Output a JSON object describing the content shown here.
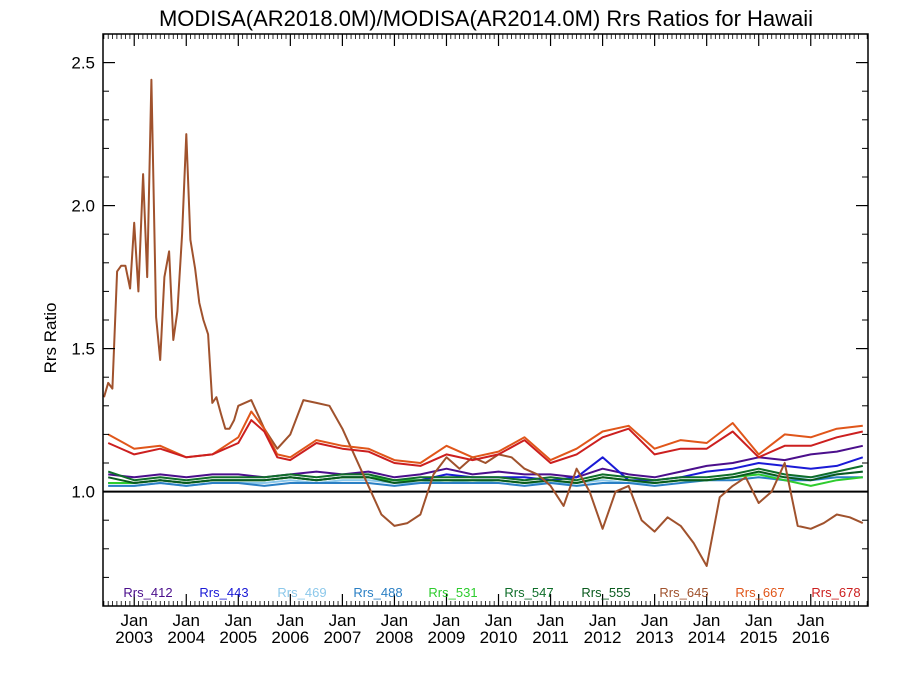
{
  "chart_data": {
    "type": "line",
    "title": "MODISA(AR2018.0M)/MODISA(AR2014.0M)  Rrs Ratios for Hawaii",
    "ylabel": "Rrs Ratio",
    "xlabel": "",
    "ylim": [
      0.6,
      2.6
    ],
    "xlim": [
      2002.4,
      2017.1
    ],
    "y_ticks": [
      1.0,
      1.5,
      2.0,
      2.5
    ],
    "y_tick_labels": [
      "1.0",
      "1.5",
      "2.0",
      "2.5"
    ],
    "x_ticks": [
      {
        "month": "Jan",
        "year": "2003",
        "x": 2003.0
      },
      {
        "month": "Jan",
        "year": "2004",
        "x": 2004.0
      },
      {
        "month": "Jan",
        "year": "2005",
        "x": 2005.0
      },
      {
        "month": "Jan",
        "year": "2006",
        "x": 2006.0
      },
      {
        "month": "Jan",
        "year": "2007",
        "x": 2007.0
      },
      {
        "month": "Jan",
        "year": "2008",
        "x": 2008.0
      },
      {
        "month": "Jan",
        "year": "2009",
        "x": 2009.0
      },
      {
        "month": "Jan",
        "year": "2010",
        "x": 2010.0
      },
      {
        "month": "Jan",
        "year": "2011",
        "x": 2011.0
      },
      {
        "month": "Jan",
        "year": "2012",
        "x": 2012.0
      },
      {
        "month": "Jan",
        "year": "2013",
        "x": 2013.0
      },
      {
        "month": "Jan",
        "year": "2014",
        "x": 2014.0
      },
      {
        "month": "Jan",
        "year": "2015",
        "x": 2015.0
      },
      {
        "month": "Jan",
        "year": "2016",
        "x": 2016.0
      }
    ],
    "reference_line": 1.0,
    "legend_position": "bottom inside plot",
    "grid": false,
    "series": [
      {
        "name": "Rrs_412",
        "color": "#4b0f8c",
        "x": [
          2002.5,
          2003.0,
          2003.5,
          2004.0,
          2004.5,
          2005.0,
          2005.5,
          2006.0,
          2006.5,
          2007.0,
          2007.5,
          2008.0,
          2008.5,
          2009.0,
          2009.5,
          2010.0,
          2010.5,
          2011.0,
          2011.5,
          2012.0,
          2012.5,
          2013.0,
          2013.5,
          2014.0,
          2014.5,
          2015.0,
          2015.5,
          2016.0,
          2016.5,
          2017.0
        ],
        "y": [
          1.06,
          1.05,
          1.06,
          1.05,
          1.06,
          1.06,
          1.05,
          1.06,
          1.07,
          1.06,
          1.07,
          1.05,
          1.06,
          1.08,
          1.06,
          1.07,
          1.06,
          1.06,
          1.05,
          1.08,
          1.06,
          1.05,
          1.07,
          1.09,
          1.1,
          1.12,
          1.11,
          1.13,
          1.14,
          1.16
        ]
      },
      {
        "name": "Rrs_443",
        "color": "#1a1ad6",
        "x": [
          2002.5,
          2003.0,
          2003.5,
          2004.0,
          2004.5,
          2005.0,
          2005.5,
          2006.0,
          2006.5,
          2007.0,
          2007.5,
          2008.0,
          2008.5,
          2009.0,
          2009.5,
          2010.0,
          2010.5,
          2011.0,
          2011.5,
          2012.0,
          2012.5,
          2013.0,
          2013.5,
          2014.0,
          2014.5,
          2015.0,
          2015.5,
          2016.0,
          2016.5,
          2017.0
        ],
        "y": [
          1.03,
          1.03,
          1.04,
          1.03,
          1.04,
          1.04,
          1.04,
          1.05,
          1.04,
          1.05,
          1.05,
          1.04,
          1.04,
          1.06,
          1.05,
          1.05,
          1.05,
          1.04,
          1.05,
          1.12,
          1.04,
          1.04,
          1.05,
          1.07,
          1.08,
          1.1,
          1.09,
          1.08,
          1.09,
          1.12
        ]
      },
      {
        "name": "Rrs_469",
        "color": "#8cc8ea",
        "x": [
          2002.5,
          2003.0,
          2003.5,
          2004.0,
          2004.5,
          2005.0,
          2005.5,
          2006.0,
          2006.5,
          2007.0,
          2007.5,
          2008.0,
          2008.5,
          2009.0,
          2009.5,
          2010.0,
          2010.5,
          2011.0,
          2011.5,
          2012.0,
          2012.5,
          2013.0,
          2013.5,
          2014.0,
          2014.5,
          2015.0,
          2015.5,
          2016.0,
          2016.5,
          2017.0
        ],
        "y": [
          1.02,
          1.02,
          1.03,
          1.02,
          1.03,
          1.03,
          1.03,
          1.04,
          1.03,
          1.04,
          1.04,
          1.03,
          1.03,
          1.04,
          1.03,
          1.04,
          1.03,
          1.03,
          1.03,
          1.04,
          1.03,
          1.03,
          1.04,
          1.04,
          1.05,
          1.06,
          1.05,
          1.05,
          1.06,
          1.07
        ]
      },
      {
        "name": "Rrs_488",
        "color": "#2a7fc4",
        "x": [
          2002.5,
          2003.0,
          2003.5,
          2004.0,
          2004.5,
          2005.0,
          2005.5,
          2006.0,
          2006.5,
          2007.0,
          2007.5,
          2008.0,
          2008.5,
          2009.0,
          2009.5,
          2010.0,
          2010.5,
          2011.0,
          2011.5,
          2012.0,
          2012.5,
          2013.0,
          2013.5,
          2014.0,
          2014.5,
          2015.0,
          2015.5,
          2016.0,
          2016.5,
          2017.0
        ],
        "y": [
          1.02,
          1.02,
          1.03,
          1.02,
          1.03,
          1.03,
          1.02,
          1.03,
          1.03,
          1.03,
          1.03,
          1.02,
          1.03,
          1.03,
          1.03,
          1.03,
          1.02,
          1.03,
          1.02,
          1.03,
          1.03,
          1.02,
          1.03,
          1.04,
          1.04,
          1.05,
          1.04,
          1.04,
          1.05,
          1.05
        ]
      },
      {
        "name": "Rrs_531",
        "color": "#2ecc2e",
        "x": [
          2002.5,
          2003.0,
          2003.5,
          2004.0,
          2004.5,
          2005.0,
          2005.5,
          2006.0,
          2006.5,
          2007.0,
          2007.5,
          2008.0,
          2008.5,
          2009.0,
          2009.5,
          2010.0,
          2010.5,
          2011.0,
          2011.5,
          2012.0,
          2012.5,
          2013.0,
          2013.5,
          2014.0,
          2014.5,
          2015.0,
          2015.5,
          2016.0,
          2016.5,
          2017.0
        ],
        "y": [
          1.03,
          1.03,
          1.04,
          1.03,
          1.04,
          1.04,
          1.04,
          1.05,
          1.04,
          1.05,
          1.05,
          1.04,
          1.04,
          1.04,
          1.04,
          1.04,
          1.03,
          1.04,
          1.03,
          1.05,
          1.04,
          1.03,
          1.04,
          1.04,
          1.05,
          1.06,
          1.04,
          1.02,
          1.04,
          1.05
        ]
      },
      {
        "name": "Rrs_547",
        "color": "#0f6e2a",
        "x": [
          2002.5,
          2003.0,
          2003.5,
          2004.0,
          2004.5,
          2005.0,
          2005.5,
          2006.0,
          2006.5,
          2007.0,
          2007.5,
          2008.0,
          2008.5,
          2009.0,
          2009.5,
          2010.0,
          2010.5,
          2011.0,
          2011.5,
          2012.0,
          2012.5,
          2013.0,
          2013.5,
          2014.0,
          2014.5,
          2015.0,
          2015.5,
          2016.0,
          2016.5,
          2017.0
        ],
        "y": [
          1.07,
          1.04,
          1.05,
          1.04,
          1.05,
          1.05,
          1.05,
          1.06,
          1.05,
          1.06,
          1.06,
          1.04,
          1.05,
          1.05,
          1.05,
          1.05,
          1.04,
          1.05,
          1.04,
          1.06,
          1.05,
          1.04,
          1.05,
          1.05,
          1.06,
          1.08,
          1.06,
          1.05,
          1.07,
          1.09
        ]
      },
      {
        "name": "Rrs_555",
        "color": "#0a5a1e",
        "x": [
          2002.5,
          2003.0,
          2003.5,
          2004.0,
          2004.5,
          2005.0,
          2005.5,
          2006.0,
          2006.5,
          2007.0,
          2007.5,
          2008.0,
          2008.5,
          2009.0,
          2009.5,
          2010.0,
          2010.5,
          2011.0,
          2011.5,
          2012.0,
          2012.5,
          2013.0,
          2013.5,
          2014.0,
          2014.5,
          2015.0,
          2015.5,
          2016.0,
          2016.5,
          2017.0
        ],
        "y": [
          1.05,
          1.03,
          1.04,
          1.03,
          1.04,
          1.04,
          1.04,
          1.05,
          1.04,
          1.05,
          1.05,
          1.03,
          1.04,
          1.04,
          1.04,
          1.04,
          1.03,
          1.04,
          1.03,
          1.05,
          1.04,
          1.03,
          1.04,
          1.04,
          1.05,
          1.07,
          1.05,
          1.04,
          1.06,
          1.07
        ]
      },
      {
        "name": "Rrs_645",
        "color": "#a0522d",
        "x": [
          2002.42,
          2002.5,
          2002.58,
          2002.67,
          2002.75,
          2002.83,
          2002.92,
          2003.0,
          2003.08,
          2003.17,
          2003.25,
          2003.33,
          2003.42,
          2003.5,
          2003.58,
          2003.67,
          2003.75,
          2003.83,
          2003.92,
          2004.0,
          2004.08,
          2004.17,
          2004.25,
          2004.33,
          2004.42,
          2004.5,
          2004.58,
          2004.67,
          2004.75,
          2004.83,
          2004.92,
          2005.0,
          2005.25,
          2005.5,
          2005.75,
          2006.0,
          2006.25,
          2006.5,
          2006.75,
          2007.0,
          2007.25,
          2007.5,
          2007.75,
          2008.0,
          2008.25,
          2008.5,
          2008.75,
          2009.0,
          2009.25,
          2009.5,
          2009.75,
          2010.0,
          2010.25,
          2010.5,
          2010.75,
          2011.0,
          2011.25,
          2011.5,
          2011.75,
          2012.0,
          2012.25,
          2012.5,
          2012.75,
          2013.0,
          2013.25,
          2013.5,
          2013.75,
          2014.0,
          2014.25,
          2014.5,
          2014.75,
          2015.0,
          2015.25,
          2015.5,
          2015.75,
          2016.0,
          2016.25,
          2016.5,
          2016.75,
          2017.0
        ],
        "y": [
          1.33,
          1.38,
          1.36,
          1.77,
          1.79,
          1.79,
          1.71,
          1.94,
          1.7,
          2.11,
          1.75,
          2.44,
          1.61,
          1.46,
          1.75,
          1.84,
          1.53,
          1.63,
          1.9,
          2.25,
          1.88,
          1.78,
          1.66,
          1.6,
          1.55,
          1.31,
          1.33,
          1.27,
          1.22,
          1.22,
          1.25,
          1.3,
          1.32,
          1.22,
          1.15,
          1.2,
          1.32,
          1.31,
          1.3,
          1.22,
          1.12,
          1.02,
          0.92,
          0.88,
          0.89,
          0.92,
          1.06,
          1.12,
          1.08,
          1.12,
          1.1,
          1.13,
          1.12,
          1.08,
          1.06,
          1.02,
          0.95,
          1.08,
          1.0,
          0.87,
          1.0,
          1.02,
          0.9,
          0.86,
          0.91,
          0.88,
          0.82,
          0.74,
          0.98,
          1.02,
          1.05,
          0.96,
          1.0,
          1.1,
          0.88,
          0.87,
          0.89,
          0.92,
          0.91,
          0.89
        ]
      },
      {
        "name": "Rrs_667",
        "color": "#e0561a",
        "x": [
          2002.5,
          2003.0,
          2003.5,
          2004.0,
          2004.5,
          2005.0,
          2005.25,
          2005.5,
          2005.75,
          2006.0,
          2006.5,
          2007.0,
          2007.5,
          2008.0,
          2008.5,
          2009.0,
          2009.5,
          2010.0,
          2010.5,
          2011.0,
          2011.5,
          2012.0,
          2012.5,
          2013.0,
          2013.5,
          2014.0,
          2014.5,
          2015.0,
          2015.5,
          2016.0,
          2016.5,
          2017.0
        ],
        "y": [
          1.2,
          1.15,
          1.16,
          1.12,
          1.13,
          1.19,
          1.28,
          1.22,
          1.13,
          1.12,
          1.18,
          1.16,
          1.15,
          1.11,
          1.1,
          1.16,
          1.12,
          1.14,
          1.19,
          1.11,
          1.15,
          1.21,
          1.23,
          1.15,
          1.18,
          1.17,
          1.24,
          1.13,
          1.2,
          1.19,
          1.22,
          1.23
        ]
      },
      {
        "name": "Rrs_678",
        "color": "#cc1f1f",
        "x": [
          2002.5,
          2003.0,
          2003.5,
          2004.0,
          2004.5,
          2005.0,
          2005.25,
          2005.5,
          2005.75,
          2006.0,
          2006.5,
          2007.0,
          2007.5,
          2008.0,
          2008.5,
          2009.0,
          2009.5,
          2010.0,
          2010.5,
          2011.0,
          2011.5,
          2012.0,
          2012.5,
          2013.0,
          2013.5,
          2014.0,
          2014.5,
          2015.0,
          2015.5,
          2016.0,
          2016.5,
          2017.0
        ],
        "y": [
          1.17,
          1.13,
          1.15,
          1.12,
          1.13,
          1.17,
          1.25,
          1.21,
          1.12,
          1.11,
          1.17,
          1.15,
          1.14,
          1.1,
          1.09,
          1.13,
          1.11,
          1.13,
          1.18,
          1.1,
          1.13,
          1.19,
          1.22,
          1.13,
          1.15,
          1.15,
          1.21,
          1.12,
          1.16,
          1.16,
          1.19,
          1.21
        ]
      }
    ]
  }
}
